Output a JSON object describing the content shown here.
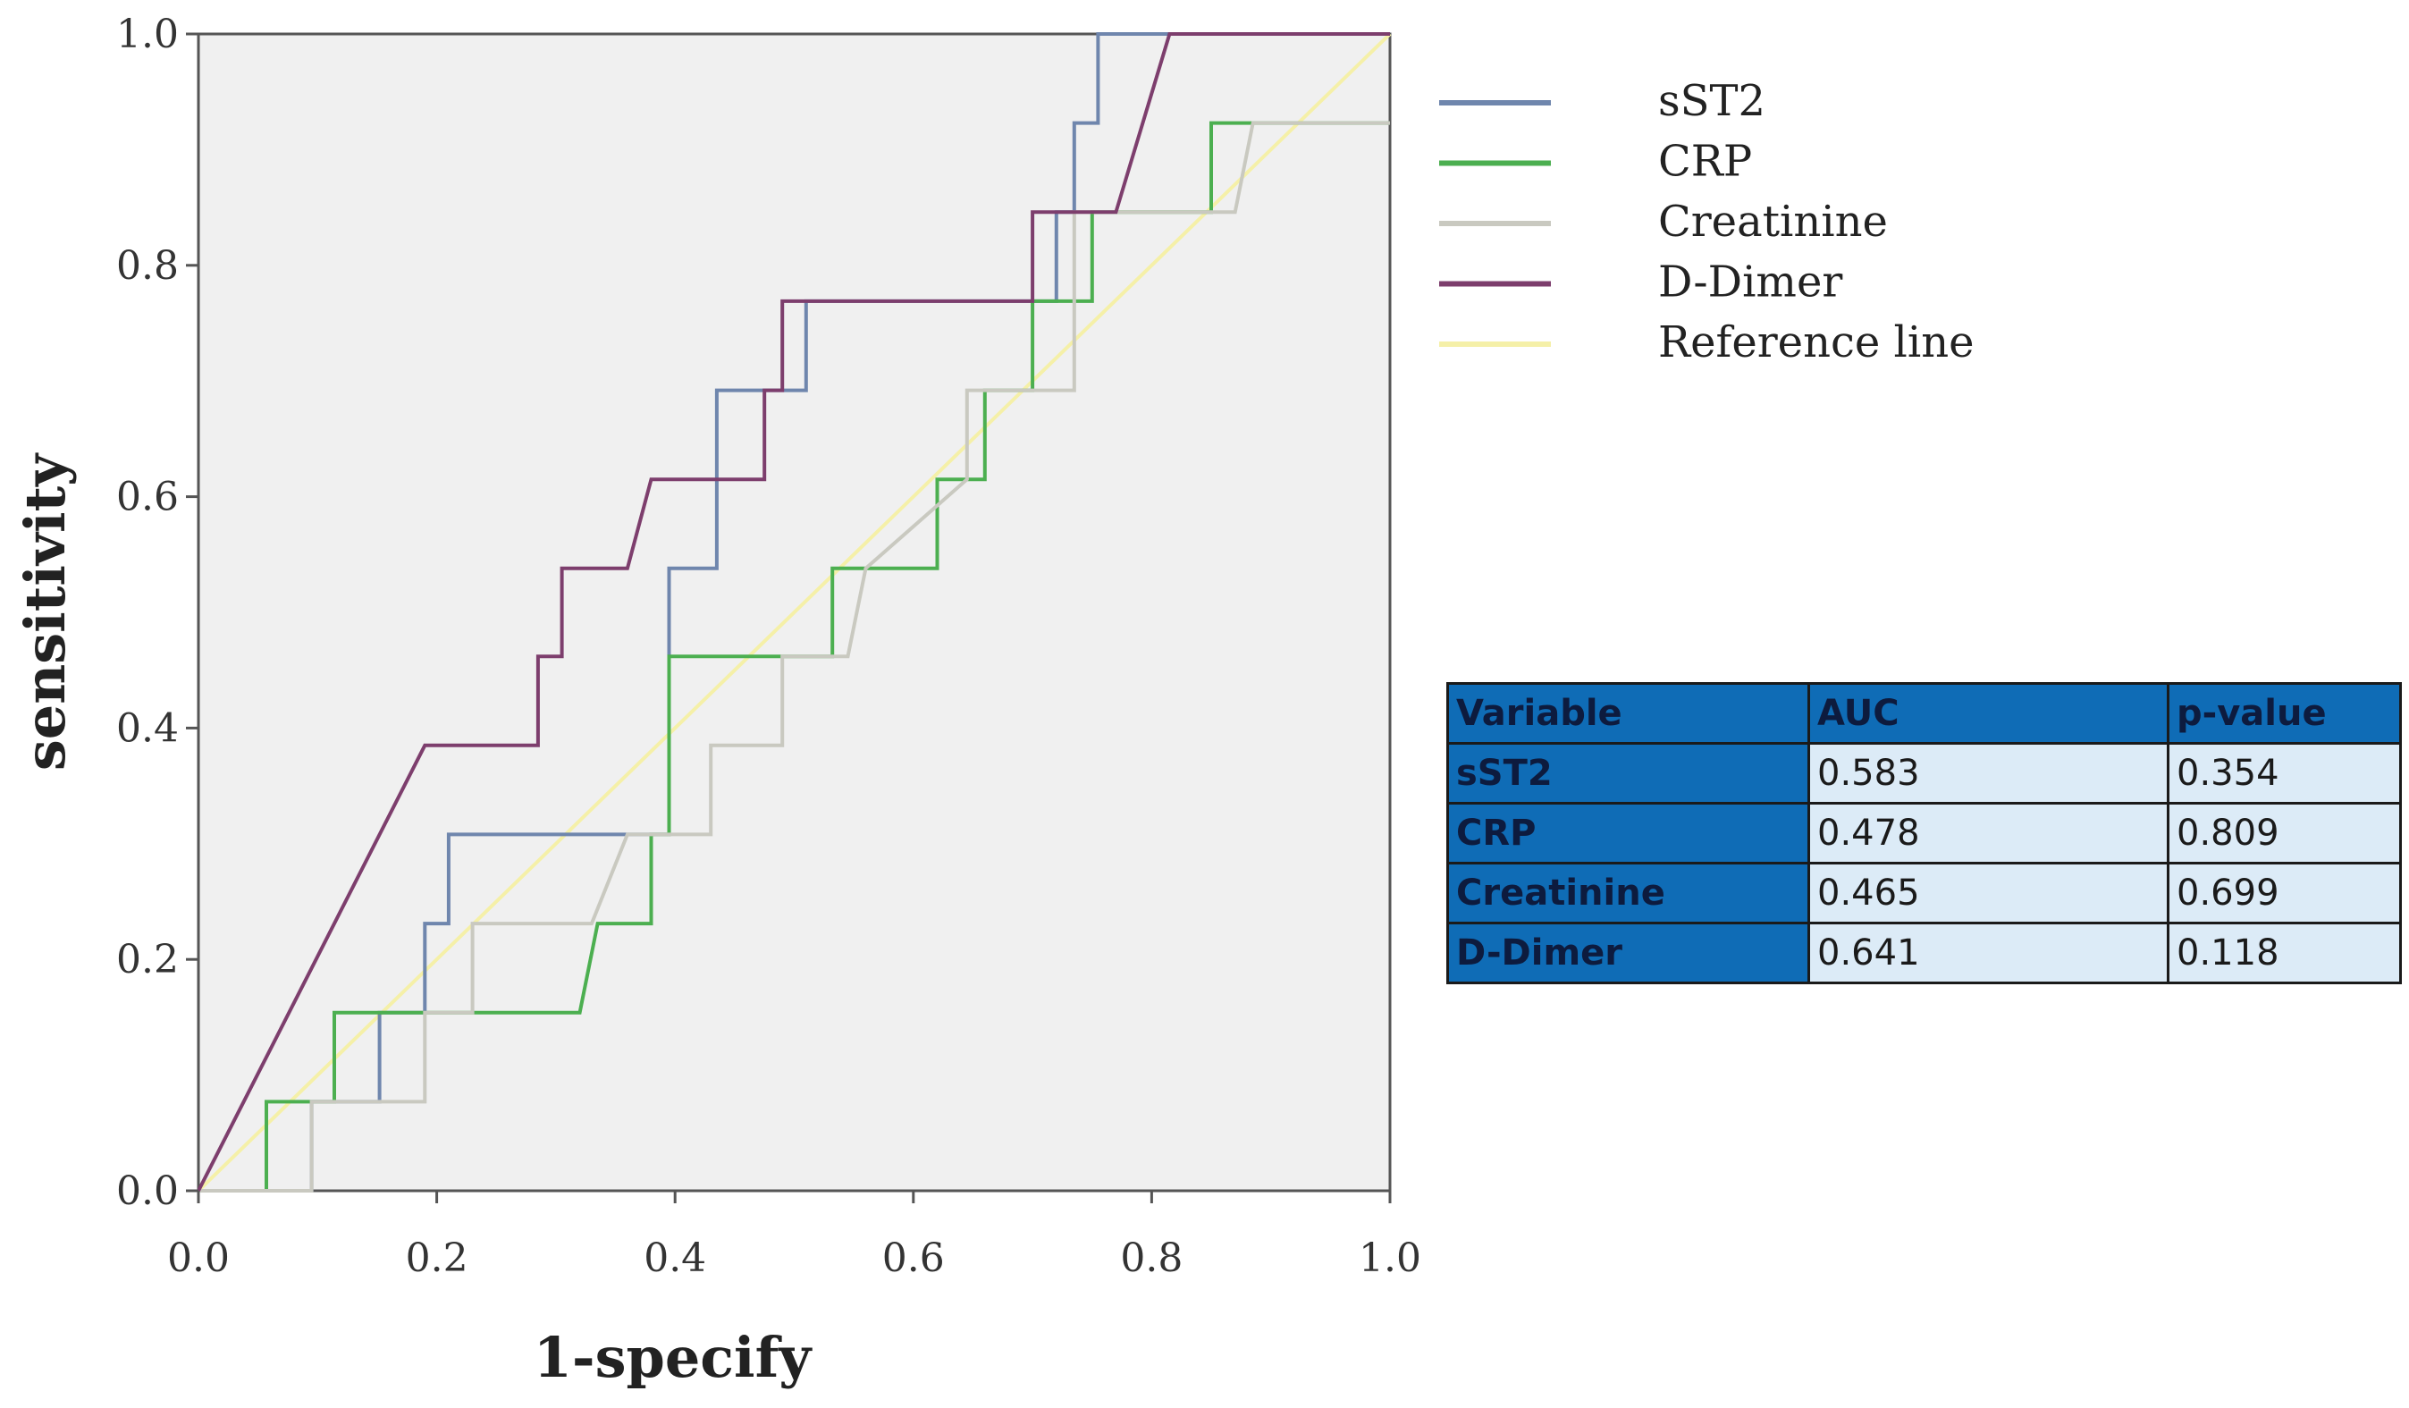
{
  "chart_data": {
    "type": "line",
    "title": "",
    "xlabel": "1-specify",
    "ylabel": "sensitivity",
    "xlim": [
      0,
      1
    ],
    "ylim": [
      0,
      1
    ],
    "xticks": [
      "0.0",
      "0.2",
      "0.4",
      "0.6",
      "0.8",
      "1.0"
    ],
    "yticks": [
      "0.0",
      "0.2",
      "0.4",
      "0.6",
      "0.8",
      "1.0"
    ],
    "plot_background": "#f0f0f0",
    "legend_position": "top-right",
    "series": [
      {
        "name": "sST2",
        "color": "#6f86ad",
        "x": [
          0,
          0.095,
          0.095,
          0.152,
          0.152,
          0.19,
          0.19,
          0.21,
          0.21,
          0.395,
          0.395,
          0.435,
          0.435,
          0.51,
          0.51,
          0.72,
          0.72,
          0.735,
          0.735,
          0.755,
          0.755,
          1.0
        ],
        "y": [
          0,
          0,
          0.077,
          0.077,
          0.154,
          0.154,
          0.231,
          0.231,
          0.308,
          0.308,
          0.538,
          0.538,
          0.692,
          0.692,
          0.769,
          0.769,
          0.846,
          0.846,
          0.923,
          0.923,
          1.0,
          1.0
        ]
      },
      {
        "name": "CRP",
        "color": "#4caf50",
        "x": [
          0,
          0.057,
          0.057,
          0.114,
          0.114,
          0.19,
          0.19,
          0.21,
          0.21,
          0.32,
          0.32,
          0.335,
          0.335,
          0.38,
          0.38,
          0.395,
          0.395,
          0.532,
          0.532,
          0.62,
          0.62,
          0.66,
          0.66,
          0.7,
          0.7,
          0.75,
          0.75,
          0.775,
          0.775,
          0.85,
          0.85,
          0.88,
          0.88,
          1.0
        ],
        "y": [
          0,
          0,
          0.077,
          0.077,
          0.154,
          0.154,
          0.154,
          0.154,
          0.154,
          0.154,
          0.154,
          0.231,
          0.231,
          0.231,
          0.308,
          0.308,
          0.462,
          0.462,
          0.538,
          0.538,
          0.615,
          0.615,
          0.692,
          0.692,
          0.769,
          0.769,
          0.846,
          0.846,
          0.846,
          0.846,
          0.923,
          0.923,
          0.923,
          0.923
        ]
      },
      {
        "name": "Creatinine",
        "color": "#c9c9c0",
        "x": [
          0,
          0.095,
          0.095,
          0.19,
          0.19,
          0.23,
          0.23,
          0.33,
          0.36,
          0.43,
          0.43,
          0.49,
          0.49,
          0.545,
          0.56,
          0.645,
          0.645,
          0.735,
          0.735,
          0.87,
          0.885,
          1.0
        ],
        "y": [
          0,
          0,
          0.077,
          0.077,
          0.154,
          0.154,
          0.231,
          0.231,
          0.308,
          0.308,
          0.385,
          0.385,
          0.462,
          0.462,
          0.538,
          0.615,
          0.692,
          0.692,
          0.846,
          0.846,
          0.923,
          0.923
        ]
      },
      {
        "name": "D-Dimer",
        "color": "#7d3e6d",
        "x": [
          0,
          0.19,
          0.285,
          0.285,
          0.305,
          0.305,
          0.36,
          0.38,
          0.475,
          0.475,
          0.49,
          0.49,
          0.7,
          0.7,
          0.77,
          0.815,
          1.0
        ],
        "y": [
          0,
          0.385,
          0.385,
          0.462,
          0.462,
          0.538,
          0.538,
          0.615,
          0.615,
          0.692,
          0.692,
          0.769,
          0.769,
          0.846,
          0.846,
          1.0,
          1.0
        ]
      },
      {
        "name": "Reference line",
        "color": "#f5f0a8",
        "x": [
          0,
          1
        ],
        "y": [
          0,
          1
        ]
      }
    ]
  },
  "stats_table": {
    "headers": [
      "Variable",
      "AUC",
      "p-value"
    ],
    "rows": [
      [
        "sST2",
        "0.583",
        "0.354"
      ],
      [
        "CRP",
        "0.478",
        "0.809"
      ],
      [
        "Creatinine",
        "0.465",
        "0.699"
      ],
      [
        "D-Dimer",
        "0.641",
        "0.118"
      ]
    ]
  }
}
